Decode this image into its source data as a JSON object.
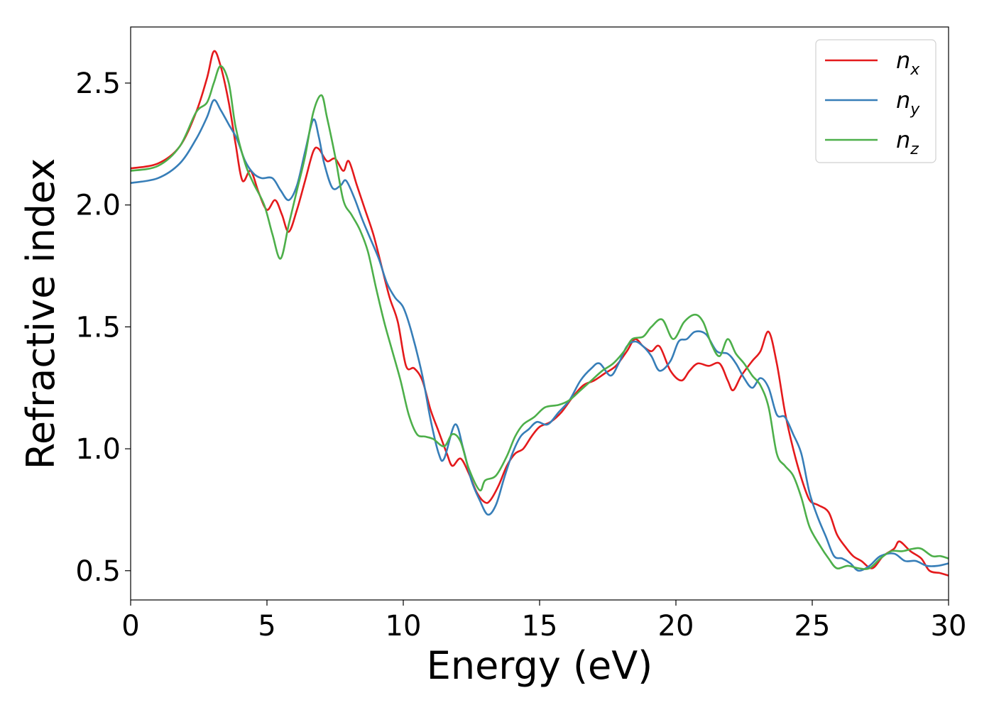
{
  "chart_data": {
    "type": "line",
    "title": "",
    "xlabel": "Energy (eV)",
    "ylabel": "Refractive index",
    "xlim": [
      0,
      30
    ],
    "ylim": [
      0.38,
      2.73
    ],
    "xticks": [
      0,
      5,
      10,
      15,
      20,
      25,
      30
    ],
    "yticks": [
      0.5,
      1.0,
      1.5,
      2.0,
      2.5
    ],
    "xtick_labels": [
      "0",
      "5",
      "10",
      "15",
      "20",
      "25",
      "30"
    ],
    "ytick_labels": [
      "0.5",
      "1.0",
      "1.5",
      "2.0",
      "2.5"
    ],
    "grid": false,
    "legend_position": "top-right",
    "series": [
      {
        "name": "n",
        "subscript": "x",
        "color": "#e41a1c",
        "points": [
          [
            0,
            2.15
          ],
          [
            1,
            2.17
          ],
          [
            1.8,
            2.24
          ],
          [
            2.4,
            2.38
          ],
          [
            2.8,
            2.52
          ],
          [
            3.05,
            2.63
          ],
          [
            3.3,
            2.57
          ],
          [
            3.6,
            2.42
          ],
          [
            3.85,
            2.25
          ],
          [
            4.1,
            2.1
          ],
          [
            4.4,
            2.14
          ],
          [
            4.7,
            2.05
          ],
          [
            5.0,
            1.98
          ],
          [
            5.3,
            2.02
          ],
          [
            5.55,
            1.96
          ],
          [
            5.8,
            1.89
          ],
          [
            6.1,
            1.98
          ],
          [
            6.4,
            2.1
          ],
          [
            6.7,
            2.22
          ],
          [
            6.9,
            2.23
          ],
          [
            7.2,
            2.18
          ],
          [
            7.5,
            2.19
          ],
          [
            7.8,
            2.14
          ],
          [
            8.0,
            2.18
          ],
          [
            8.3,
            2.08
          ],
          [
            8.6,
            1.98
          ],
          [
            8.9,
            1.88
          ],
          [
            9.2,
            1.75
          ],
          [
            9.5,
            1.62
          ],
          [
            9.8,
            1.52
          ],
          [
            10.1,
            1.34
          ],
          [
            10.4,
            1.33
          ],
          [
            10.7,
            1.28
          ],
          [
            11.0,
            1.16
          ],
          [
            11.3,
            1.07
          ],
          [
            11.6,
            0.98
          ],
          [
            11.8,
            0.93
          ],
          [
            12.1,
            0.96
          ],
          [
            12.4,
            0.9
          ],
          [
            12.7,
            0.82
          ],
          [
            13.0,
            0.78
          ],
          [
            13.2,
            0.79
          ],
          [
            13.5,
            0.85
          ],
          [
            13.8,
            0.93
          ],
          [
            14.1,
            0.98
          ],
          [
            14.4,
            1.0
          ],
          [
            14.7,
            1.05
          ],
          [
            15.0,
            1.09
          ],
          [
            15.4,
            1.11
          ],
          [
            15.8,
            1.15
          ],
          [
            16.2,
            1.21
          ],
          [
            16.6,
            1.26
          ],
          [
            17.0,
            1.28
          ],
          [
            17.4,
            1.31
          ],
          [
            17.8,
            1.34
          ],
          [
            18.2,
            1.4
          ],
          [
            18.5,
            1.45
          ],
          [
            18.8,
            1.42
          ],
          [
            19.1,
            1.4
          ],
          [
            19.4,
            1.42
          ],
          [
            19.8,
            1.32
          ],
          [
            20.2,
            1.28
          ],
          [
            20.5,
            1.32
          ],
          [
            20.8,
            1.35
          ],
          [
            21.2,
            1.34
          ],
          [
            21.6,
            1.35
          ],
          [
            21.9,
            1.28
          ],
          [
            22.1,
            1.24
          ],
          [
            22.4,
            1.3
          ],
          [
            22.8,
            1.36
          ],
          [
            23.1,
            1.4
          ],
          [
            23.4,
            1.48
          ],
          [
            23.7,
            1.35
          ],
          [
            24.0,
            1.15
          ],
          [
            24.3,
            1.0
          ],
          [
            24.6,
            0.88
          ],
          [
            24.9,
            0.79
          ],
          [
            25.2,
            0.77
          ],
          [
            25.6,
            0.74
          ],
          [
            25.9,
            0.65
          ],
          [
            26.2,
            0.6
          ],
          [
            26.5,
            0.56
          ],
          [
            26.8,
            0.54
          ],
          [
            27.2,
            0.51
          ],
          [
            27.6,
            0.56
          ],
          [
            28.0,
            0.59
          ],
          [
            28.2,
            0.62
          ],
          [
            28.6,
            0.58
          ],
          [
            29.0,
            0.55
          ],
          [
            29.3,
            0.5
          ],
          [
            29.7,
            0.49
          ],
          [
            30.0,
            0.48
          ]
        ]
      },
      {
        "name": "n",
        "subscript": "y",
        "color": "#377eb8",
        "points": [
          [
            0,
            2.09
          ],
          [
            1,
            2.11
          ],
          [
            1.8,
            2.17
          ],
          [
            2.4,
            2.27
          ],
          [
            2.8,
            2.36
          ],
          [
            3.05,
            2.43
          ],
          [
            3.3,
            2.39
          ],
          [
            3.6,
            2.33
          ],
          [
            3.9,
            2.27
          ],
          [
            4.2,
            2.18
          ],
          [
            4.5,
            2.13
          ],
          [
            4.8,
            2.11
          ],
          [
            5.2,
            2.11
          ],
          [
            5.5,
            2.06
          ],
          [
            5.8,
            2.02
          ],
          [
            6.1,
            2.08
          ],
          [
            6.4,
            2.22
          ],
          [
            6.7,
            2.35
          ],
          [
            6.9,
            2.28
          ],
          [
            7.1,
            2.17
          ],
          [
            7.4,
            2.07
          ],
          [
            7.7,
            2.08
          ],
          [
            7.9,
            2.1
          ],
          [
            8.2,
            2.03
          ],
          [
            8.5,
            1.94
          ],
          [
            8.8,
            1.86
          ],
          [
            9.1,
            1.78
          ],
          [
            9.4,
            1.68
          ],
          [
            9.7,
            1.62
          ],
          [
            10.0,
            1.58
          ],
          [
            10.3,
            1.48
          ],
          [
            10.7,
            1.3
          ],
          [
            11.0,
            1.12
          ],
          [
            11.3,
            0.98
          ],
          [
            11.5,
            0.96
          ],
          [
            11.9,
            1.1
          ],
          [
            12.2,
            1.0
          ],
          [
            12.5,
            0.87
          ],
          [
            12.8,
            0.79
          ],
          [
            13.1,
            0.73
          ],
          [
            13.4,
            0.77
          ],
          [
            13.7,
            0.88
          ],
          [
            14.0,
            0.98
          ],
          [
            14.3,
            1.05
          ],
          [
            14.6,
            1.08
          ],
          [
            14.9,
            1.11
          ],
          [
            15.3,
            1.1
          ],
          [
            15.7,
            1.15
          ],
          [
            16.1,
            1.2
          ],
          [
            16.5,
            1.28
          ],
          [
            16.9,
            1.33
          ],
          [
            17.2,
            1.35
          ],
          [
            17.6,
            1.3
          ],
          [
            17.9,
            1.35
          ],
          [
            18.2,
            1.42
          ],
          [
            18.5,
            1.44
          ],
          [
            18.8,
            1.42
          ],
          [
            19.1,
            1.38
          ],
          [
            19.4,
            1.32
          ],
          [
            19.8,
            1.36
          ],
          [
            20.1,
            1.44
          ],
          [
            20.4,
            1.45
          ],
          [
            20.7,
            1.48
          ],
          [
            21.1,
            1.47
          ],
          [
            21.5,
            1.4
          ],
          [
            21.9,
            1.39
          ],
          [
            22.2,
            1.35
          ],
          [
            22.5,
            1.29
          ],
          [
            22.8,
            1.25
          ],
          [
            23.1,
            1.29
          ],
          [
            23.4,
            1.25
          ],
          [
            23.7,
            1.14
          ],
          [
            24.0,
            1.13
          ],
          [
            24.3,
            1.06
          ],
          [
            24.6,
            0.98
          ],
          [
            24.9,
            0.82
          ],
          [
            25.2,
            0.72
          ],
          [
            25.5,
            0.64
          ],
          [
            25.8,
            0.56
          ],
          [
            26.1,
            0.55
          ],
          [
            26.4,
            0.53
          ],
          [
            26.7,
            0.5
          ],
          [
            27.1,
            0.52
          ],
          [
            27.5,
            0.56
          ],
          [
            28.0,
            0.57
          ],
          [
            28.4,
            0.54
          ],
          [
            28.8,
            0.54
          ],
          [
            29.2,
            0.52
          ],
          [
            29.6,
            0.52
          ],
          [
            30.0,
            0.53
          ]
        ]
      },
      {
        "name": "n",
        "subscript": "z",
        "color": "#4daf4a",
        "points": [
          [
            0,
            2.14
          ],
          [
            1,
            2.16
          ],
          [
            1.8,
            2.24
          ],
          [
            2.4,
            2.38
          ],
          [
            2.8,
            2.42
          ],
          [
            3.05,
            2.5
          ],
          [
            3.3,
            2.57
          ],
          [
            3.6,
            2.5
          ],
          [
            3.85,
            2.32
          ],
          [
            4.2,
            2.17
          ],
          [
            4.5,
            2.09
          ],
          [
            4.9,
            2.0
          ],
          [
            5.2,
            1.88
          ],
          [
            5.5,
            1.78
          ],
          [
            5.8,
            1.92
          ],
          [
            6.1,
            2.06
          ],
          [
            6.4,
            2.2
          ],
          [
            6.7,
            2.38
          ],
          [
            7.0,
            2.45
          ],
          [
            7.2,
            2.36
          ],
          [
            7.5,
            2.2
          ],
          [
            7.8,
            2.02
          ],
          [
            8.1,
            1.96
          ],
          [
            8.4,
            1.9
          ],
          [
            8.7,
            1.81
          ],
          [
            9.0,
            1.66
          ],
          [
            9.3,
            1.52
          ],
          [
            9.6,
            1.4
          ],
          [
            9.9,
            1.28
          ],
          [
            10.2,
            1.14
          ],
          [
            10.5,
            1.06
          ],
          [
            10.8,
            1.05
          ],
          [
            11.1,
            1.04
          ],
          [
            11.5,
            1.01
          ],
          [
            11.8,
            1.06
          ],
          [
            12.1,
            1.03
          ],
          [
            12.4,
            0.92
          ],
          [
            12.8,
            0.83
          ],
          [
            13.0,
            0.87
          ],
          [
            13.4,
            0.89
          ],
          [
            13.8,
            0.97
          ],
          [
            14.1,
            1.05
          ],
          [
            14.4,
            1.1
          ],
          [
            14.8,
            1.13
          ],
          [
            15.2,
            1.17
          ],
          [
            15.7,
            1.18
          ],
          [
            16.1,
            1.2
          ],
          [
            16.5,
            1.24
          ],
          [
            16.9,
            1.28
          ],
          [
            17.3,
            1.32
          ],
          [
            17.7,
            1.35
          ],
          [
            18.1,
            1.4
          ],
          [
            18.4,
            1.45
          ],
          [
            18.8,
            1.46
          ],
          [
            19.1,
            1.5
          ],
          [
            19.5,
            1.53
          ],
          [
            19.9,
            1.45
          ],
          [
            20.3,
            1.52
          ],
          [
            20.7,
            1.55
          ],
          [
            21.0,
            1.52
          ],
          [
            21.3,
            1.43
          ],
          [
            21.6,
            1.38
          ],
          [
            21.9,
            1.45
          ],
          [
            22.2,
            1.39
          ],
          [
            22.5,
            1.35
          ],
          [
            22.8,
            1.3
          ],
          [
            23.1,
            1.26
          ],
          [
            23.4,
            1.17
          ],
          [
            23.7,
            0.98
          ],
          [
            24.0,
            0.93
          ],
          [
            24.3,
            0.89
          ],
          [
            24.6,
            0.8
          ],
          [
            24.9,
            0.68
          ],
          [
            25.3,
            0.6
          ],
          [
            25.6,
            0.55
          ],
          [
            25.9,
            0.51
          ],
          [
            26.3,
            0.52
          ],
          [
            26.7,
            0.51
          ],
          [
            27.1,
            0.51
          ],
          [
            27.5,
            0.55
          ],
          [
            27.9,
            0.58
          ],
          [
            28.3,
            0.58
          ],
          [
            28.7,
            0.59
          ],
          [
            29.0,
            0.59
          ],
          [
            29.4,
            0.56
          ],
          [
            29.7,
            0.56
          ],
          [
            30.0,
            0.55
          ]
        ]
      }
    ]
  }
}
